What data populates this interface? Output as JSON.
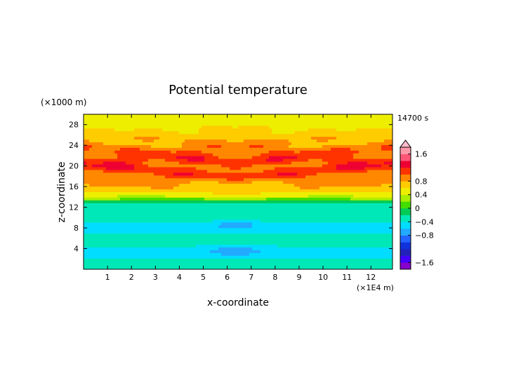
{
  "chart_data": {
    "type": "heatmap",
    "title": "Potential temperature",
    "xlabel": "x-coordinate",
    "ylabel": "z-coordinate",
    "x_unit": "(×1E4 m)",
    "y_unit": "(×1000 m)",
    "time_label": "14700 s",
    "xlim": [
      0,
      12.9
    ],
    "ylim": [
      0,
      30
    ],
    "x_ticks": [
      "1",
      "2",
      "3",
      "4",
      "5",
      "6",
      "7",
      "8",
      "9",
      "10",
      "11",
      "12"
    ],
    "y_ticks": [
      "4",
      "8",
      "12",
      "16",
      "20",
      "24",
      "28"
    ],
    "colorbar": {
      "min": -1.8,
      "max": 1.8,
      "tick_labels": [
        "1.6",
        "0.8",
        "0.4",
        "0",
        "−0.4",
        "−0.8",
        "−1.6"
      ],
      "tick_values": [
        1.6,
        0.8,
        0.4,
        0,
        -0.4,
        -0.8,
        -1.6
      ],
      "levels": [
        -1.8,
        -1.6,
        -1.4,
        -1.2,
        -1.0,
        -0.8,
        -0.6,
        -0.4,
        -0.2,
        0,
        0.2,
        0.4,
        0.6,
        0.8,
        1.0,
        1.2,
        1.4,
        1.6,
        1.8
      ],
      "colors": [
        "#8800cc",
        "#4400ff",
        "#2222bb",
        "#1133dd",
        "#2266ff",
        "#22aaff",
        "#00ddff",
        "#00e8b8",
        "#00cc55",
        "#44dd00",
        "#aaee00",
        "#eeee00",
        "#ffcc00",
        "#ff8800",
        "#ff3300",
        "#ee0033",
        "#ff5577",
        "#ff99aa"
      ],
      "overflow_color": "#ffbbcc"
    }
  }
}
